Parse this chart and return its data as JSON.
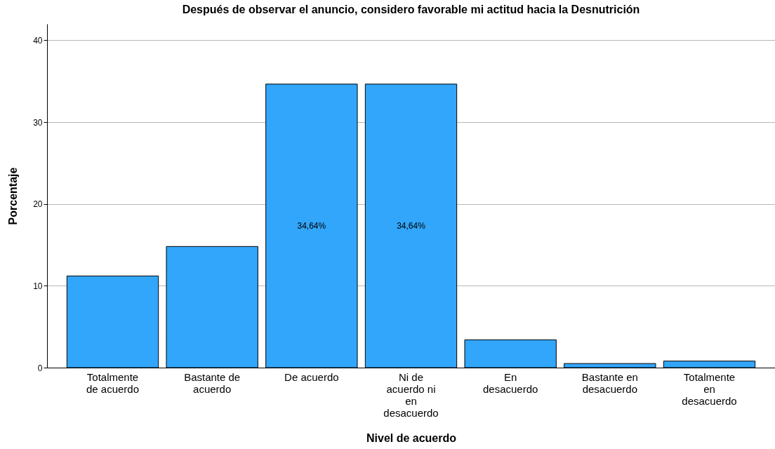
{
  "chart_data": {
    "type": "bar",
    "title": "Después de observar el anuncio, considero favorable mi actitud hacia la Desnutrición",
    "xlabel": "Nivel de acuerdo",
    "ylabel": "Porcentaje",
    "categories": [
      "Totalmente de acuerdo",
      "Bastante de acuerdo",
      "De acuerdo",
      "Ni de acuerdo ni en desacuerdo",
      "En desacuerdo",
      "Bastante en desacuerdo",
      "Totalmente en desacuerdo"
    ],
    "values": [
      11.2,
      14.8,
      34.64,
      34.64,
      3.4,
      0.5,
      0.8
    ],
    "value_labels": [
      null,
      null,
      "34,64%",
      "34,64%",
      null,
      null,
      null
    ],
    "color": "#31a6fb",
    "ylim": [
      0,
      42
    ],
    "yticks": [
      0,
      10,
      20,
      30,
      40
    ],
    "grid": "y"
  }
}
